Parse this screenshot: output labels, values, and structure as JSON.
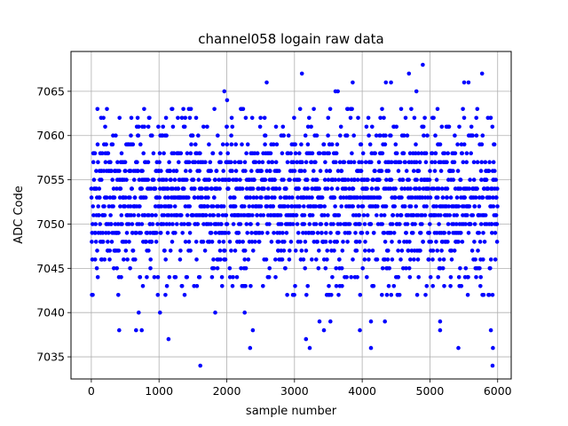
{
  "chart_data": {
    "type": "scatter",
    "title": "channel058 logain raw data",
    "xlabel": "sample number",
    "ylabel": "ADC Code",
    "xlim": [
      -300,
      6200
    ],
    "ylim": [
      7032.5,
      7069.5
    ],
    "xticks": [
      0,
      1000,
      2000,
      3000,
      4000,
      5000,
      6000
    ],
    "yticks": [
      7035,
      7040,
      7045,
      7050,
      7055,
      7060,
      7065
    ],
    "grid": true,
    "marker_color": "#0000ff",
    "series": [
      {
        "sample_count": 6000,
        "value_range": [
          7034,
          7068
        ],
        "typical_min": 7042,
        "typical_max": 7063,
        "outliers": [
          [
            412,
            7038
          ],
          [
            660,
            7038
          ],
          [
            700,
            7040
          ],
          [
            745,
            7038
          ],
          [
            1015,
            7040
          ],
          [
            1140,
            7037
          ],
          [
            1610,
            7034
          ],
          [
            1830,
            7040
          ],
          [
            1965,
            7065
          ],
          [
            2005,
            7064
          ],
          [
            2265,
            7040
          ],
          [
            2345,
            7036
          ],
          [
            2385,
            7038
          ],
          [
            2590,
            7066
          ],
          [
            3110,
            7067
          ],
          [
            3170,
            7037
          ],
          [
            3225,
            7036
          ],
          [
            3370,
            7039
          ],
          [
            3435,
            7038
          ],
          [
            3530,
            7039
          ],
          [
            3605,
            7065
          ],
          [
            3640,
            7065
          ],
          [
            3860,
            7066
          ],
          [
            3965,
            7038
          ],
          [
            4130,
            7036
          ],
          [
            4130,
            7039
          ],
          [
            4335,
            7039
          ],
          [
            4350,
            7066
          ],
          [
            4425,
            7066
          ],
          [
            4690,
            7067
          ],
          [
            4800,
            7065
          ],
          [
            4895,
            7068
          ],
          [
            5150,
            7039
          ],
          [
            5150,
            7038
          ],
          [
            5420,
            7036
          ],
          [
            5505,
            7066
          ],
          [
            5570,
            7066
          ],
          [
            5770,
            7067
          ],
          [
            5900,
            7038
          ],
          [
            5930,
            7036
          ],
          [
            5925,
            7034
          ]
        ]
      }
    ]
  }
}
